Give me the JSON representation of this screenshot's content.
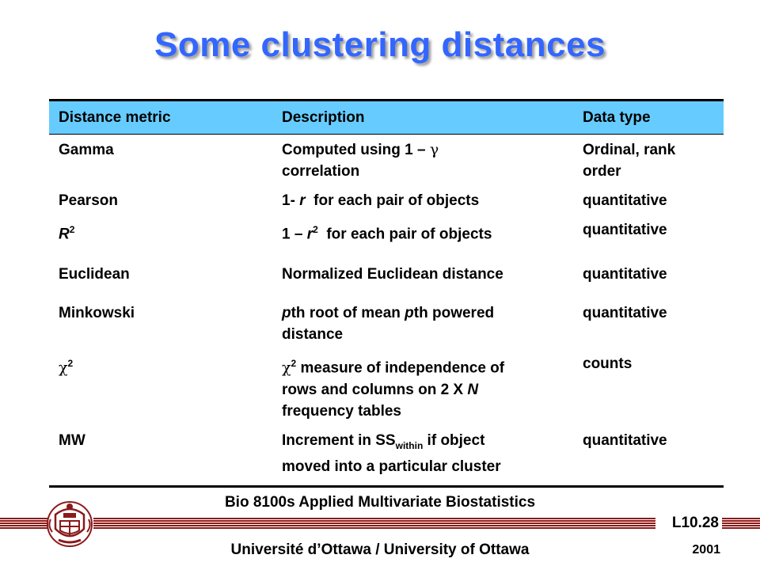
{
  "title": "Some clustering distances",
  "table": {
    "headers": [
      "Distance metric",
      "Description",
      "Data type"
    ],
    "rows": [
      {
        "metric": "Gamma",
        "description": "Computed using 1 – γ correlation",
        "data_type": "Ordinal, rank order"
      },
      {
        "metric": "Pearson",
        "description": "1- r  for each pair of objects",
        "data_type": "quantitative"
      },
      {
        "metric": "R2",
        "description": "1 – r2  for each pair of objects",
        "data_type": "quantitative"
      },
      {
        "metric": "Euclidean",
        "description": "Normalized Euclidean distance",
        "data_type": "quantitative"
      },
      {
        "metric": "Minkowski",
        "description": "pth root of mean pth powered distance",
        "data_type": "quantitative"
      },
      {
        "metric": "χ2",
        "description": "χ2 measure of independence of rows and columns on 2 X N frequency tables",
        "data_type": "counts"
      },
      {
        "metric": "MW",
        "description": "Increment in SSwithin if object moved into a particular cluster",
        "data_type": "quantitative"
      }
    ]
  },
  "footer": {
    "course": "Bio 8100s Applied Multivariate Biostatistics",
    "slide_number": "L10.28",
    "university": "Université d’Ottawa / University of Ottawa",
    "year": "2001"
  },
  "colors": {
    "title": "#3366ff",
    "header_bg": "#66ccff",
    "footer_bar": "#8b1a1a"
  },
  "icons": {
    "crest": "university-crest-icon"
  }
}
